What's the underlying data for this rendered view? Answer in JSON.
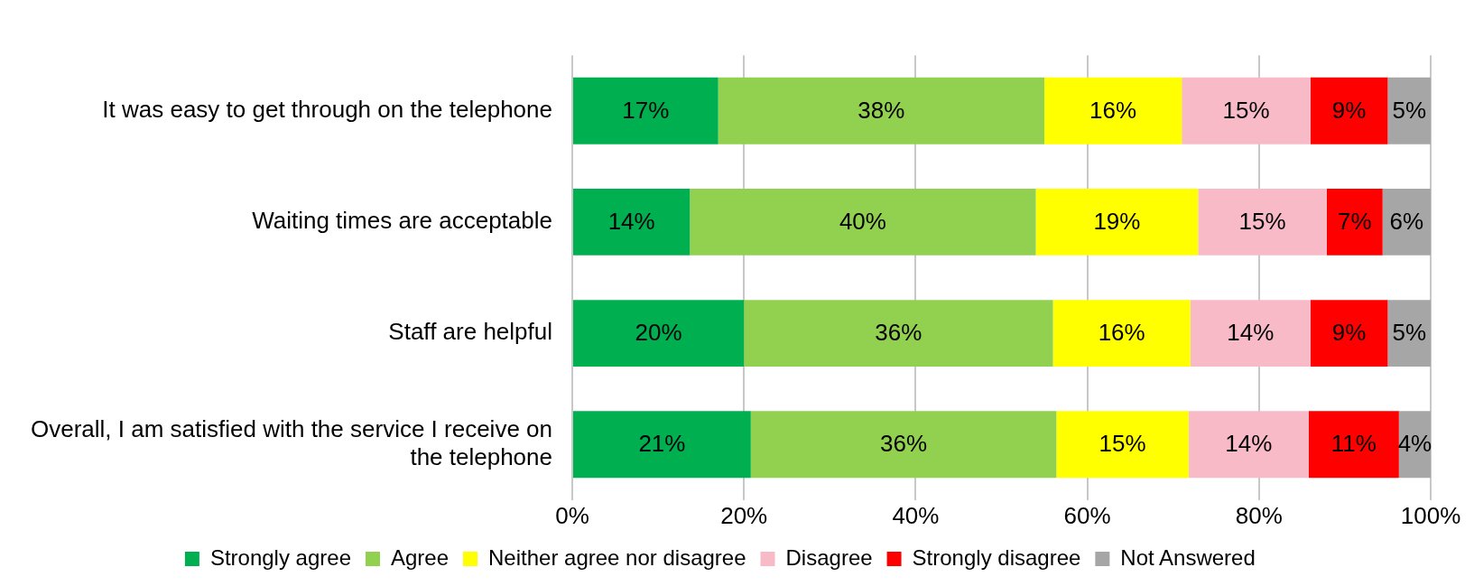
{
  "chart_data": {
    "type": "bar",
    "orientation": "horizontal",
    "stacked": true,
    "categories": [
      "It was easy to get through on the telephone",
      "Waiting times are acceptable",
      "Staff are helpful",
      "Overall, I am satisfied with the service I receive on the telephone"
    ],
    "series": [
      {
        "name": "Strongly agree",
        "color": "#00b050",
        "values": [
          17,
          13.7,
          20,
          20.8
        ],
        "value_labels": [
          "17%",
          "14%",
          "20%",
          "21%"
        ]
      },
      {
        "name": "Agree",
        "color": "#92d050",
        "values": [
          38,
          40.3,
          36,
          35.6
        ],
        "value_labels": [
          "38%",
          "40%",
          "36%",
          "36%"
        ]
      },
      {
        "name": "Neither agree nor disagree",
        "color": "#ffff00",
        "values": [
          16,
          18.9,
          16,
          15.4
        ],
        "value_labels": [
          "16%",
          "19%",
          "16%",
          "15%"
        ]
      },
      {
        "name": "Disagree",
        "color": "#f9bac8",
        "values": [
          15,
          15,
          14,
          14
        ],
        "value_labels": [
          "15%",
          "15%",
          "14%",
          "14%"
        ]
      },
      {
        "name": "Strongly disagree",
        "color": "#ff0000",
        "values": [
          9,
          6.5,
          9,
          10.5
        ],
        "value_labels": [
          "9%",
          "7%",
          "9%",
          "11%"
        ]
      },
      {
        "name": "Not Answered",
        "color": "#a6a6a6",
        "values": [
          5,
          5.6,
          5,
          3.7
        ],
        "value_labels": [
          "5%",
          "6%",
          "5%",
          "4%"
        ]
      }
    ],
    "xlim": [
      0,
      100
    ],
    "xticks": [
      {
        "value": 0,
        "label": "0%"
      },
      {
        "value": 20,
        "label": "20%"
      },
      {
        "value": 40,
        "label": "40%"
      },
      {
        "value": 60,
        "label": "60%"
      },
      {
        "value": 80,
        "label": "80%"
      },
      {
        "value": 100,
        "label": "100%"
      }
    ],
    "grid": "x",
    "legend": "bottom"
  }
}
